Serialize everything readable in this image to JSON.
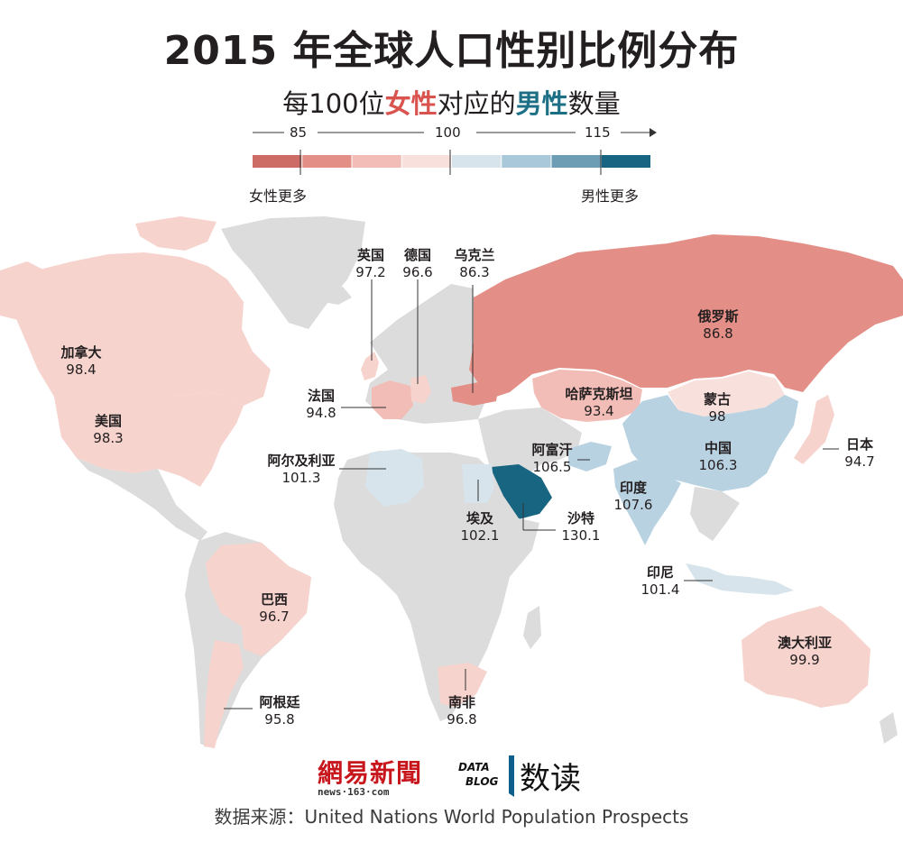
{
  "title": "2015 年全球人口性别比例分布",
  "subtitle": {
    "prefix": "每100位",
    "female": "女性",
    "middle": "对应的",
    "male": "男性",
    "suffix": "数量"
  },
  "legend": {
    "ticks": [
      "85",
      "100",
      "115"
    ],
    "colors": [
      "#cd6b66",
      "#e38e86",
      "#f1bdb6",
      "#f8e0dc",
      "#d7e4ec",
      "#a9c8d9",
      "#6c9db4",
      "#176580"
    ],
    "left_label": "女性更多",
    "right_label": "男性更多"
  },
  "colors": {
    "land": "#dcdcdc",
    "female_more": "#f6d3cd",
    "very_female": "#e38e86",
    "balanced": "#f7e0dc",
    "male_more": "#b9d2e1",
    "very_male": "#176580"
  },
  "countries": [
    {
      "name": "加拿大",
      "value": "98.4"
    },
    {
      "name": "美国",
      "value": "98.3"
    },
    {
      "name": "英国",
      "value": "97.2"
    },
    {
      "name": "德国",
      "value": "96.6"
    },
    {
      "name": "乌克兰",
      "value": "86.3"
    },
    {
      "name": "俄罗斯",
      "value": "86.8"
    },
    {
      "name": "法国",
      "value": "94.8"
    },
    {
      "name": "哈萨克斯坦",
      "value": "93.4"
    },
    {
      "name": "蒙古",
      "value": "98"
    },
    {
      "name": "阿尔及利亚",
      "value": "101.3"
    },
    {
      "name": "阿富汗",
      "value": "106.5"
    },
    {
      "name": "中国",
      "value": "106.3"
    },
    {
      "name": "日本",
      "value": "94.7"
    },
    {
      "name": "印度",
      "value": "107.6"
    },
    {
      "name": "埃及",
      "value": "102.1"
    },
    {
      "name": "沙特",
      "value": "130.1"
    },
    {
      "name": "印尼",
      "value": "101.4"
    },
    {
      "name": "巴西",
      "value": "96.7"
    },
    {
      "name": "澳大利亚",
      "value": "99.9"
    },
    {
      "name": "阿根廷",
      "value": "95.8"
    },
    {
      "name": "南非",
      "value": "96.8"
    }
  ],
  "logos": {
    "netease": "網易新聞",
    "netease_url": "news·163·com",
    "datablog_top": "DATA",
    "datablog_bottom": "BLOG",
    "datablog_cn": "数读"
  },
  "source": "数据来源：United Nations World Population Prospects"
}
